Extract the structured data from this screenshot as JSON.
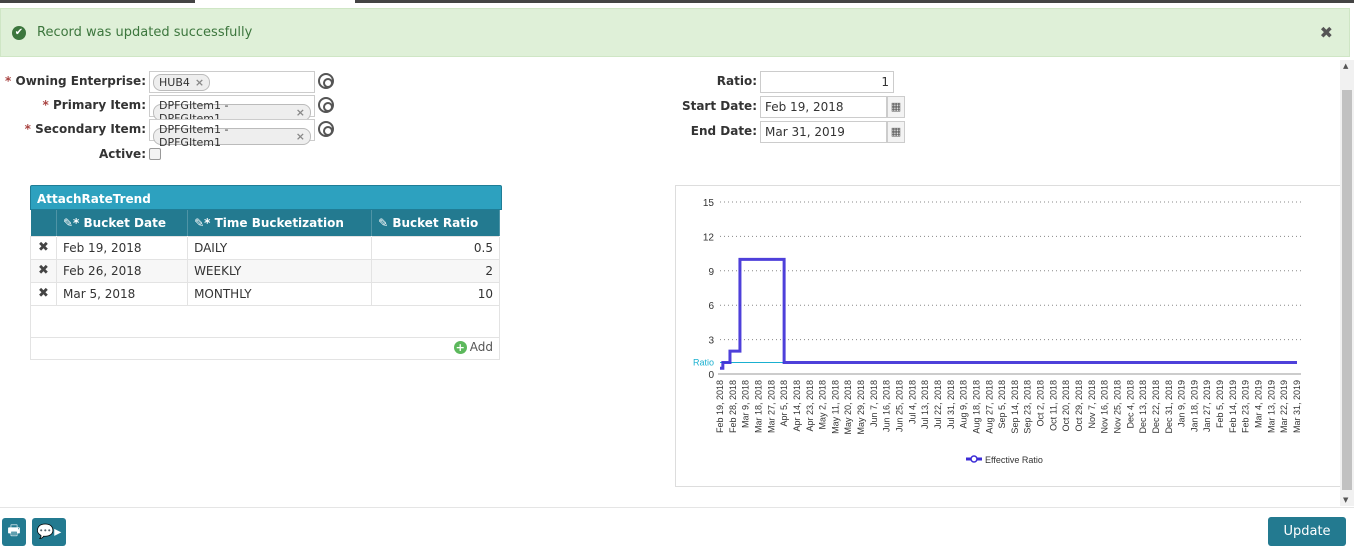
{
  "alert": {
    "message": "Record was updated successfully",
    "icon": "check-circle-icon",
    "close_icon": "close-icon"
  },
  "form": {
    "owning_enterprise": {
      "label": "Owning Enterprise:",
      "value": "HUB4"
    },
    "primary_item": {
      "label": "Primary Item:",
      "value": "DPFGItem1 - DPFGItem1"
    },
    "secondary_item": {
      "label": "Secondary Item:",
      "value": "DPFGItem1 - DPFGItem1"
    },
    "active": {
      "label": "Active:",
      "checked": false
    },
    "ratio": {
      "label": "Ratio:",
      "value": "1"
    },
    "start_date": {
      "label": "Start Date:",
      "value": "Feb 19, 2018"
    },
    "end_date": {
      "label": "End Date:",
      "value": "Mar 31, 2019"
    },
    "required_mark": "*"
  },
  "grid": {
    "title": "AttachRateTrend",
    "columns": [
      "Bucket Date",
      "Time Bucketization",
      "Bucket Ratio"
    ],
    "rows": [
      {
        "date": "Feb 19, 2018",
        "bucket": "DAILY",
        "ratio": "0.5"
      },
      {
        "date": "Feb 26, 2018",
        "bucket": "WEEKLY",
        "ratio": "2"
      },
      {
        "date": "Mar 5, 2018",
        "bucket": "MONTHLY",
        "ratio": "10"
      }
    ],
    "add_label": "Add"
  },
  "chart_data": {
    "type": "line",
    "step": true,
    "ylim": [
      0,
      15
    ],
    "yticks": [
      0,
      3,
      6,
      9,
      12,
      15
    ],
    "grid": "horizontal-dotted",
    "legend": "bottom",
    "x_start": "2018-02-19",
    "x_end": "2019-03-31",
    "xtick_labels": [
      "Feb 19, 2018",
      "Feb 28, 2018",
      "Mar 9, 2018",
      "Mar 18, 2018",
      "Mar 27, 2018",
      "Apr 5, 2018",
      "Apr 14, 2018",
      "Apr 23, 2018",
      "May 2, 2018",
      "May 11, 2018",
      "May 20, 2018",
      "May 29, 2018",
      "Jun 7, 2018",
      "Jun 16, 2018",
      "Jun 25, 2018",
      "Jul 4, 2018",
      "Jul 13, 2018",
      "Jul 22, 2018",
      "Jul 31, 2018",
      "Aug 9, 2018",
      "Aug 18, 2018",
      "Aug 27, 2018",
      "Sep 5, 2018",
      "Sep 14, 2018",
      "Sep 23, 2018",
      "Oct 2, 2018",
      "Oct 11, 2018",
      "Oct 20, 2018",
      "Oct 29, 2018",
      "Nov 7, 2018",
      "Nov 16, 2018",
      "Nov 25, 2018",
      "Dec 4, 2018",
      "Dec 13, 2018",
      "Dec 22, 2018",
      "Dec 31, 2018",
      "Jan 9, 2019",
      "Jan 18, 2019",
      "Jan 27, 2019",
      "Feb 5, 2019",
      "Feb 14, 2019",
      "Feb 23, 2019",
      "Mar 4, 2019",
      "Mar 13, 2019",
      "Mar 22, 2019",
      "Mar 31, 2019"
    ],
    "series": [
      {
        "name": "Effective Ratio",
        "color": "#3b2bd6",
        "points": [
          {
            "x": "2018-02-19",
            "y": 0.5
          },
          {
            "x": "2018-02-21",
            "y": 1
          },
          {
            "x": "2018-02-26",
            "y": 2
          },
          {
            "x": "2018-03-05",
            "y": 10
          },
          {
            "x": "2018-04-05",
            "y": 1
          },
          {
            "x": "2019-03-31",
            "y": 1
          }
        ]
      }
    ],
    "reference_line": {
      "label": "Ratio",
      "y": 1,
      "x_end": "2018-04-05",
      "color": "#1ab0d0"
    }
  },
  "footer": {
    "update_label": "Update",
    "print_icon": "print-icon",
    "chat_icon": "chat-icon"
  }
}
